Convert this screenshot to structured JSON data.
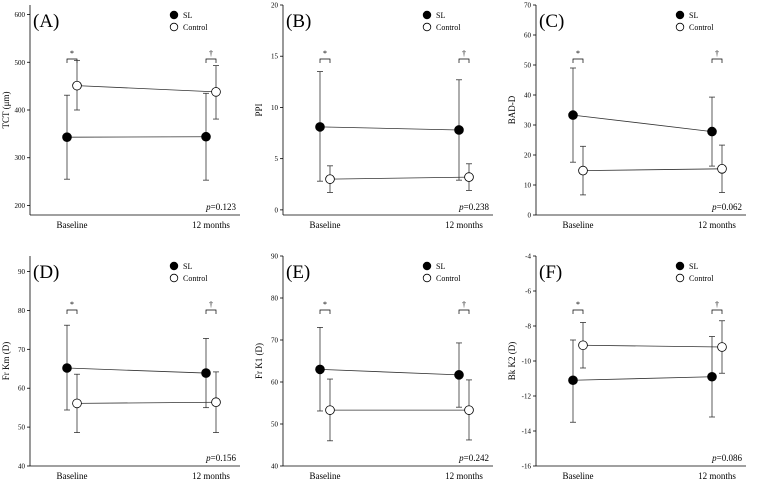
{
  "chart_data": [
    {
      "type": "line",
      "panel_label": "(A)",
      "ylabel": "TCT (μm)",
      "ylim": [
        180,
        620
      ],
      "yticks": [
        200,
        300,
        400,
        500,
        600
      ],
      "categories": [
        "Baseline",
        "12 months"
      ],
      "series": [
        {
          "name": "SL",
          "marker": "filled",
          "values": [
            343,
            344
          ],
          "err_low": [
            255,
            253
          ],
          "err_high": [
            431,
            435
          ]
        },
        {
          "name": "Control",
          "marker": "open",
          "values": [
            451,
            438
          ],
          "err_low": [
            400,
            381
          ],
          "err_high": [
            504,
            493
          ]
        }
      ],
      "significance": [
        "*",
        "†"
      ],
      "p_prefix": "p",
      "p_value": "=0.123"
    },
    {
      "type": "line",
      "panel_label": "(B)",
      "ylabel": "PPI",
      "ylim": [
        -0.5,
        20
      ],
      "yticks": [
        0,
        5,
        10,
        15,
        20
      ],
      "categories": [
        "Baseline",
        "12 months"
      ],
      "series": [
        {
          "name": "SL",
          "marker": "filled",
          "values": [
            8.1,
            7.8
          ],
          "err_low": [
            2.8,
            2.9
          ],
          "err_high": [
            13.5,
            12.7
          ]
        },
        {
          "name": "Control",
          "marker": "open",
          "values": [
            3.0,
            3.2
          ],
          "err_low": [
            1.7,
            1.9
          ],
          "err_high": [
            4.3,
            4.5
          ]
        }
      ],
      "significance": [
        "*",
        "†"
      ],
      "p_prefix": "p",
      "p_value": "=0.238"
    },
    {
      "type": "line",
      "panel_label": "(C)",
      "ylabel": "BAD-D",
      "ylim": [
        0,
        70
      ],
      "yticks": [
        0,
        10,
        20,
        30,
        40,
        50,
        60,
        70
      ],
      "categories": [
        "Baseline",
        "12 months"
      ],
      "series": [
        {
          "name": "SL",
          "marker": "filled",
          "values": [
            33.3,
            27.8
          ],
          "err_low": [
            17.6,
            16.3
          ],
          "err_high": [
            49.0,
            39.3
          ]
        },
        {
          "name": "Control",
          "marker": "open",
          "values": [
            14.8,
            15.4
          ],
          "err_low": [
            6.7,
            7.5
          ],
          "err_high": [
            22.9,
            23.3
          ]
        }
      ],
      "significance": [
        "*",
        "†"
      ],
      "p_prefix": "p",
      "p_value": "=0.062"
    },
    {
      "type": "line",
      "panel_label": "(D)",
      "ylabel": "Fr Km (D)",
      "ylim": [
        40,
        94
      ],
      "yticks": [
        40,
        50,
        60,
        70,
        80,
        90
      ],
      "categories": [
        "Baseline",
        "12 months"
      ],
      "series": [
        {
          "name": "SL",
          "marker": "filled",
          "values": [
            65.2,
            63.9
          ],
          "err_low": [
            54.4,
            55.0
          ],
          "err_high": [
            76.2,
            72.8
          ]
        },
        {
          "name": "Control",
          "marker": "open",
          "values": [
            56.1,
            56.4
          ],
          "err_low": [
            48.6,
            48.6
          ],
          "err_high": [
            63.6,
            64.2
          ]
        }
      ],
      "significance": [
        "*",
        "†"
      ],
      "p_prefix": "p",
      "p_value": "=0.156"
    },
    {
      "type": "line",
      "panel_label": "(E)",
      "ylabel": "Fr K1 (D)",
      "ylim": [
        40,
        90
      ],
      "yticks": [
        40,
        50,
        60,
        70,
        80,
        90
      ],
      "categories": [
        "Baseline",
        "12 months"
      ],
      "series": [
        {
          "name": "SL",
          "marker": "filled",
          "values": [
            63.0,
            61.7
          ],
          "err_low": [
            53.1,
            54.0
          ],
          "err_high": [
            73.0,
            69.3
          ]
        },
        {
          "name": "Control",
          "marker": "open",
          "values": [
            53.3,
            53.3
          ],
          "err_low": [
            46.0,
            46.2
          ],
          "err_high": [
            60.7,
            60.5
          ]
        }
      ],
      "significance": [
        "*",
        "†"
      ],
      "p_prefix": "p",
      "p_value": "=0.242"
    },
    {
      "type": "line",
      "panel_label": "(F)",
      "ylabel": "Bk K2 (D)",
      "ylim": [
        -16,
        -4
      ],
      "yticks": [
        -16,
        -14,
        -12,
        -10,
        -8,
        -6,
        -4
      ],
      "categories": [
        "Baseline",
        "12 months"
      ],
      "series": [
        {
          "name": "SL",
          "marker": "filled",
          "values": [
            -11.1,
            -10.9
          ],
          "err_low": [
            -13.5,
            -13.2
          ],
          "err_high": [
            -8.8,
            -8.6
          ]
        },
        {
          "name": "Control",
          "marker": "open",
          "values": [
            -9.1,
            -9.2
          ],
          "err_low": [
            -10.4,
            -10.7
          ],
          "err_high": [
            -7.8,
            -7.7
          ]
        }
      ],
      "significance": [
        "*",
        "†"
      ],
      "p_prefix": "p",
      "p_value": "=0.086"
    }
  ]
}
